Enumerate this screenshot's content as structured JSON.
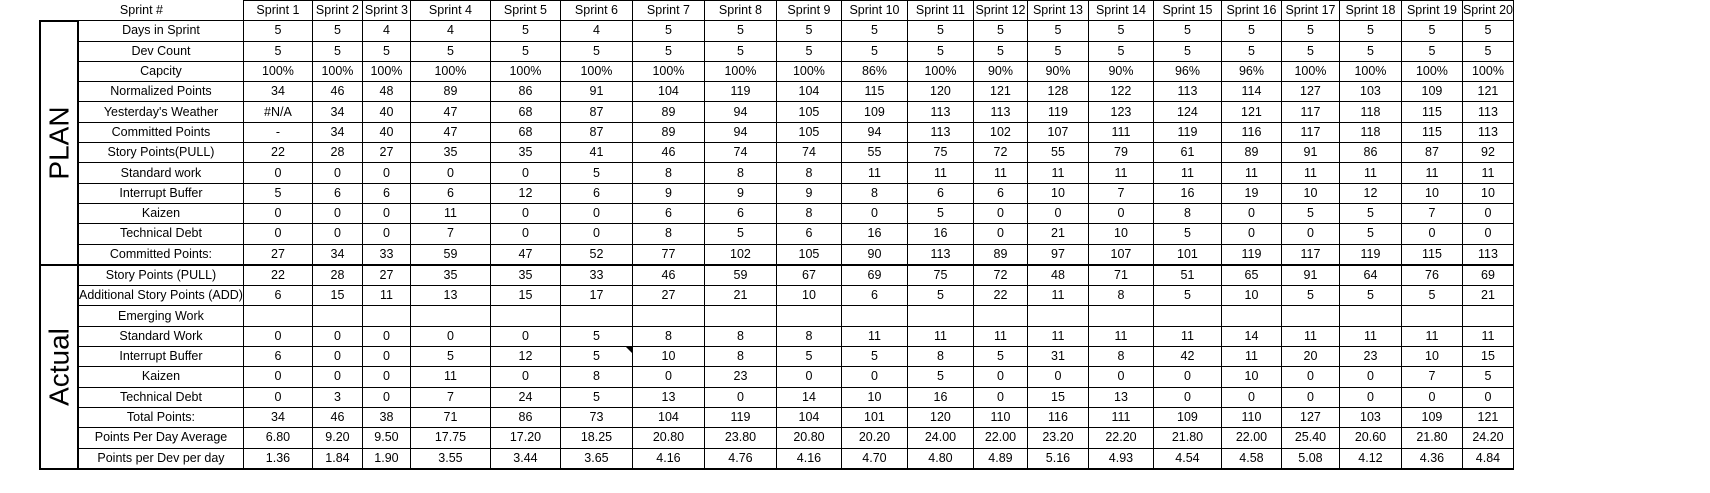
{
  "header": {
    "label": "Sprint #",
    "sprints": [
      "Sprint 1",
      "Sprint 2",
      "Sprint 3",
      "Sprint 4",
      "Sprint 5",
      "Sprint 6",
      "Sprint 7",
      "Sprint 8",
      "Sprint 9",
      "Sprint 10",
      "Sprint 11",
      "Sprint 12",
      "Sprint 13",
      "Sprint 14",
      "Sprint 15",
      "Sprint 16",
      "Sprint 17",
      "Sprint 18",
      "Sprint 19",
      "Sprint 20"
    ]
  },
  "sections": [
    {
      "title": "PLAN",
      "rows": [
        {
          "label": "Days in Sprint",
          "values": [
            "5",
            "5",
            "4",
            "4",
            "5",
            "4",
            "5",
            "5",
            "5",
            "5",
            "5",
            "5",
            "5",
            "5",
            "5",
            "5",
            "5",
            "5",
            "5",
            "5"
          ]
        },
        {
          "label": "Dev Count",
          "values": [
            "5",
            "5",
            "5",
            "5",
            "5",
            "5",
            "5",
            "5",
            "5",
            "5",
            "5",
            "5",
            "5",
            "5",
            "5",
            "5",
            "5",
            "5",
            "5",
            "5"
          ]
        },
        {
          "label": "Capcity",
          "values": [
            "100%",
            "100%",
            "100%",
            "100%",
            "100%",
            "100%",
            "100%",
            "100%",
            "100%",
            "86%",
            "100%",
            "90%",
            "90%",
            "90%",
            "96%",
            "96%",
            "100%",
            "100%",
            "100%",
            "100%"
          ]
        },
        {
          "label": "Normalized Points",
          "small": true,
          "values": [
            "34",
            "46",
            "48",
            "89",
            "86",
            "91",
            "104",
            "119",
            "104",
            "115",
            "120",
            "121",
            "128",
            "122",
            "113",
            "114",
            "127",
            "103",
            "109",
            "121"
          ]
        },
        {
          "label": "Yesterday's Weather",
          "values": [
            "#N/A",
            "34",
            "40",
            "47",
            "68",
            "87",
            "89",
            "94",
            "105",
            "109",
            "113",
            "113",
            "119",
            "123",
            "124",
            "121",
            "117",
            "118",
            "115",
            "113"
          ]
        },
        {
          "label": "Committed Points",
          "values": [
            "-",
            "34",
            "40",
            "47",
            "68",
            "87",
            "89",
            "94",
            "105",
            "94",
            "113",
            "102",
            "107",
            "111",
            "119",
            "116",
            "117",
            "118",
            "115",
            "113"
          ]
        },
        {
          "label": "Story Points(PULL)",
          "values": [
            "22",
            "28",
            "27",
            "35",
            "35",
            "41",
            "46",
            "74",
            "74",
            "55",
            "75",
            "72",
            "55",
            "79",
            "61",
            "89",
            "91",
            "86",
            "87",
            "92"
          ]
        },
        {
          "label": "Standard work",
          "values": [
            "0",
            "0",
            "0",
            "0",
            "0",
            "5",
            "8",
            "8",
            "8",
            "11",
            "11",
            "11",
            "11",
            "11",
            "11",
            "11",
            "11",
            "11",
            "11",
            "11"
          ]
        },
        {
          "label": "Interrupt Buffer",
          "values": [
            "5",
            "6",
            "6",
            "6",
            "12",
            "6",
            "9",
            "9",
            "9",
            "8",
            "6",
            "6",
            "10",
            "7",
            "16",
            "19",
            "10",
            "12",
            "10",
            "10"
          ]
        },
        {
          "label": "Kaizen",
          "values": [
            "0",
            "0",
            "0",
            "11",
            "0",
            "0",
            "6",
            "6",
            "8",
            "0",
            "5",
            "0",
            "0",
            "0",
            "8",
            "0",
            "5",
            "5",
            "7",
            "0"
          ]
        },
        {
          "label": "Technical Debt",
          "values": [
            "0",
            "0",
            "0",
            "7",
            "0",
            "0",
            "8",
            "5",
            "6",
            "16",
            "16",
            "0",
            "21",
            "10",
            "5",
            "0",
            "0",
            "5",
            "0",
            "0"
          ]
        },
        {
          "label": "Committed Points:",
          "values": [
            "27",
            "34",
            "33",
            "59",
            "47",
            "52",
            "77",
            "102",
            "105",
            "90",
            "113",
            "89",
            "97",
            "107",
            "101",
            "119",
            "117",
            "119",
            "115",
            "113"
          ]
        }
      ]
    },
    {
      "title": "Actual",
      "rows": [
        {
          "label": "Story Points (PULL)",
          "values": [
            "22",
            "28",
            "27",
            "35",
            "35",
            "33",
            "46",
            "59",
            "67",
            "69",
            "75",
            "72",
            "48",
            "71",
            "51",
            "65",
            "91",
            "64",
            "76",
            "69"
          ]
        },
        {
          "label": "Additional Story Points (ADD)",
          "values": [
            "6",
            "15",
            "11",
            "13",
            "15",
            "17",
            "27",
            "21",
            "10",
            "6",
            "5",
            "22",
            "11",
            "8",
            "5",
            "10",
            "5",
            "5",
            "5",
            "21"
          ]
        },
        {
          "label": "Emerging Work",
          "values": [
            "",
            "",
            "",
            "",
            "",
            "",
            "",
            "",
            "",
            "",
            "",
            "",
            "",
            "",
            "",
            "",
            "",
            "",
            "",
            ""
          ]
        },
        {
          "label": "Standard Work",
          "values": [
            "0",
            "0",
            "0",
            "0",
            "0",
            "5",
            "8",
            "8",
            "8",
            "11",
            "11",
            "11",
            "11",
            "11",
            "11",
            "14",
            "11",
            "11",
            "11",
            "11"
          ]
        },
        {
          "label": "Interrupt Buffer",
          "values": [
            "6",
            "0",
            "0",
            "5",
            "12",
            "5",
            "10",
            "8",
            "5",
            "5",
            "8",
            "5",
            "31",
            "8",
            "42",
            "11",
            "20",
            "23",
            "10",
            "15"
          ]
        },
        {
          "label": "Kaizen",
          "values": [
            "0",
            "0",
            "0",
            "11",
            "0",
            "8",
            "0",
            "23",
            "0",
            "0",
            "5",
            "0",
            "0",
            "0",
            "0",
            "10",
            "0",
            "0",
            "7",
            "5"
          ]
        },
        {
          "label": "Technical Debt",
          "values": [
            "0",
            "3",
            "0",
            "7",
            "24",
            "5",
            "13",
            "0",
            "14",
            "10",
            "16",
            "0",
            "15",
            "13",
            "0",
            "0",
            "0",
            "0",
            "0",
            "0"
          ]
        },
        {
          "label": "Total Points:",
          "values": [
            "34",
            "46",
            "38",
            "71",
            "86",
            "73",
            "104",
            "119",
            "104",
            "101",
            "120",
            "110",
            "116",
            "111",
            "109",
            "110",
            "127",
            "103",
            "109",
            "121"
          ]
        },
        {
          "label": "Points Per Day Average",
          "values": [
            "6.80",
            "9.20",
            "9.50",
            "17.75",
            "17.20",
            "18.25",
            "20.80",
            "23.80",
            "20.80",
            "20.20",
            "24.00",
            "22.00",
            "23.20",
            "22.20",
            "21.80",
            "22.00",
            "25.40",
            "20.60",
            "21.80",
            "24.20"
          ]
        },
        {
          "label": "Points per Dev per day",
          "values": [
            "1.36",
            "1.84",
            "1.90",
            "3.55",
            "3.44",
            "3.65",
            "4.16",
            "4.76",
            "4.16",
            "4.70",
            "4.80",
            "4.89",
            "5.16",
            "4.93",
            "4.54",
            "4.58",
            "5.08",
            "4.12",
            "4.36",
            "4.84"
          ]
        }
      ]
    }
  ]
}
